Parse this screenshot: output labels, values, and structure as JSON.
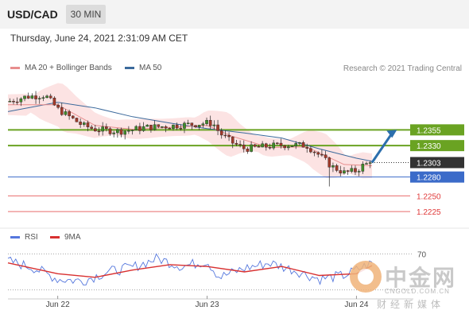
{
  "header": {
    "pair": "USD/CAD",
    "timeframe": "30 MIN",
    "datetime": "Thursday, June 24, 2021 2:31:09 AM CET"
  },
  "legend": {
    "ma20_label": "MA 20 + Bollinger Bands",
    "ma50_label": "MA 50",
    "credit": "Research © 2021 Trading Central"
  },
  "rsi_legend": {
    "rsi_label": "RSI",
    "ma_label": "9MA"
  },
  "watermark": {
    "title": "中金网",
    "url": "CNGOLD.COM.CN",
    "subtitle": "财经新媒体"
  },
  "colors": {
    "ma20": "#e88d8d",
    "ma50": "#3c6a9c",
    "resistance": "#6aa322",
    "support_blue": "#3b6bc9",
    "support_red": "#e03a3a",
    "current": "#333333",
    "rsi": "#5577dd",
    "rsi_ma": "#d83030",
    "band_fill": "#fbd9d9",
    "arrow": "#2c6fad"
  },
  "chart_data": [
    {
      "type": "candlestick",
      "title": "USD/CAD",
      "timeframe": "30 MIN",
      "ylim": [
        1.2205,
        1.2425
      ],
      "x_tick_labels": [
        "Jun 22",
        "Jun 23",
        "Jun 24"
      ],
      "series": [
        {
          "name": "USD/CAD",
          "close_path": [
            [
              "Jun 21 16:00",
              1.24
            ],
            [
              "Jun 21 19:00",
              1.2408
            ],
            [
              "Jun 21 22:00",
              1.241
            ],
            [
              "Jun 22 00:00",
              1.2388
            ],
            [
              "Jun 22 02:00",
              1.2375
            ],
            [
              "Jun 22 04:00",
              1.2362
            ],
            [
              "Jun 22 06:00",
              1.2356
            ],
            [
              "Jun 22 08:00",
              1.2354
            ],
            [
              "Jun 22 10:00",
              1.2353
            ],
            [
              "Jun 22 12:00",
              1.2355
            ],
            [
              "Jun 22 14:00",
              1.2359
            ],
            [
              "Jun 22 16:00",
              1.236
            ],
            [
              "Jun 22 18:00",
              1.2361
            ],
            [
              "Jun 22 20:00",
              1.2363
            ],
            [
              "Jun 22 22:00",
              1.2364
            ],
            [
              "Jun 23 00:00",
              1.2366
            ],
            [
              "Jun 23 01:00",
              1.2365
            ],
            [
              "Jun 23 02:00",
              1.235
            ],
            [
              "Jun 23 04:00",
              1.2335
            ],
            [
              "Jun 23 06:00",
              1.2325
            ],
            [
              "Jun 23 08:00",
              1.2327
            ],
            [
              "Jun 23 10:00",
              1.2329
            ],
            [
              "Jun 23 12:00",
              1.2331
            ],
            [
              "Jun 23 14:00",
              1.2331
            ],
            [
              "Jun 23 16:00",
              1.233
            ],
            [
              "Jun 23 18:00",
              1.2315
            ],
            [
              "Jun 23 20:00",
              1.2297
            ],
            [
              "Jun 23 22:00",
              1.2287
            ],
            [
              "Jun 24 00:00",
              1.229
            ],
            [
              "Jun 24 01:00",
              1.2298
            ],
            [
              "Jun 24 02:00",
              1.2302
            ],
            [
              "Jun 24 02:30",
              1.2303
            ]
          ],
          "low_extreme": 1.2265
        },
        {
          "name": "MA 20 + Bollinger Bands",
          "values": [
            [
              "Jun 21 16:00",
              1.2395
            ],
            [
              "Jun 22 00:00",
              1.2395
            ],
            [
              "Jun 22 06:00",
              1.2362
            ],
            [
              "Jun 22 12:00",
              1.2356
            ],
            [
              "Jun 22 18:00",
              1.2359
            ],
            [
              "Jun 23 00:00",
              1.2362
            ],
            [
              "Jun 23 04:00",
              1.2345
            ],
            [
              "Jun 23 10:00",
              1.2327
            ],
            [
              "Jun 23 16:00",
              1.2328
            ],
            [
              "Jun 23 22:00",
              1.23
            ],
            [
              "Jun 24 02:30",
              1.2298
            ]
          ]
        },
        {
          "name": "MA 50",
          "values": [
            [
              "Jun 21 16:00",
              1.2384
            ],
            [
              "Jun 22 00:00",
              1.2399
            ],
            [
              "Jun 22 06:00",
              1.239
            ],
            [
              "Jun 22 12:00",
              1.2376
            ],
            [
              "Jun 22 18:00",
              1.2366
            ],
            [
              "Jun 23 00:00",
              1.2357
            ],
            [
              "Jun 23 06:00",
              1.235
            ],
            [
              "Jun 23 12:00",
              1.2342
            ],
            [
              "Jun 23 18:00",
              1.2325
            ],
            [
              "Jun 24 00:00",
              1.231
            ],
            [
              "Jun 24 02:30",
              1.2305
            ]
          ]
        }
      ],
      "levels": [
        {
          "value": 1.2355,
          "label": "1.2355",
          "kind": "resistance"
        },
        {
          "value": 1.233,
          "label": "1.2330",
          "kind": "resistance"
        },
        {
          "value": 1.2303,
          "label": "1.2303",
          "kind": "current"
        },
        {
          "value": 1.228,
          "label": "1.2280",
          "kind": "support"
        },
        {
          "value": 1.225,
          "label": "1.2250",
          "kind": "support"
        },
        {
          "value": 1.2225,
          "label": "1.2225",
          "kind": "support"
        }
      ],
      "annotations": [
        {
          "type": "arrow",
          "from": [
            "Jun 24 02:30",
            1.2303
          ],
          "to": [
            "Jun 24 06:30",
            1.2355
          ]
        }
      ]
    },
    {
      "type": "line",
      "title": "RSI",
      "ylim": [
        20,
        80
      ],
      "y_tick_labels": [
        "70"
      ],
      "x_tick_labels": [
        "Jun 22",
        "Jun 23",
        "Jun 24"
      ],
      "series": [
        {
          "name": "RSI",
          "values": [
            [
              "Jun 21 16:00",
              62
            ],
            [
              "Jun 21 20:00",
              55
            ],
            [
              "Jun 22 00:00",
              42
            ],
            [
              "Jun 22 04:00",
              40
            ],
            [
              "Jun 22 08:00",
              50
            ],
            [
              "Jun 22 12:00",
              55
            ],
            [
              "Jun 22 16:00",
              65
            ],
            [
              "Jun 22 20:00",
              56
            ],
            [
              "Jun 23 00:00",
              62
            ],
            [
              "Jun 23 02:00",
              44
            ],
            [
              "Jun 23 06:00",
              54
            ],
            [
              "Jun 23 10:00",
              60
            ],
            [
              "Jun 23 14:00",
              52
            ],
            [
              "Jun 23 18:00",
              42
            ],
            [
              "Jun 23 22:00",
              46
            ],
            [
              "Jun 24 00:00",
              52
            ],
            [
              "Jun 24 02:30",
              60
            ]
          ]
        },
        {
          "name": "9MA",
          "values": [
            [
              "Jun 21 16:00",
              60
            ],
            [
              "Jun 22 00:00",
              48
            ],
            [
              "Jun 22 06:00",
              44
            ],
            [
              "Jun 22 12:00",
              52
            ],
            [
              "Jun 22 18:00",
              58
            ],
            [
              "Jun 23 00:00",
              56
            ],
            [
              "Jun 23 06:00",
              50
            ],
            [
              "Jun 23 12:00",
              56
            ],
            [
              "Jun 23 18:00",
              46
            ],
            [
              "Jun 24 00:00",
              48
            ],
            [
              "Jun 24 02:30",
              57
            ]
          ]
        }
      ],
      "levels": [
        {
          "value": 70,
          "label": "70"
        },
        {
          "value": 30,
          "label": ""
        }
      ]
    }
  ]
}
